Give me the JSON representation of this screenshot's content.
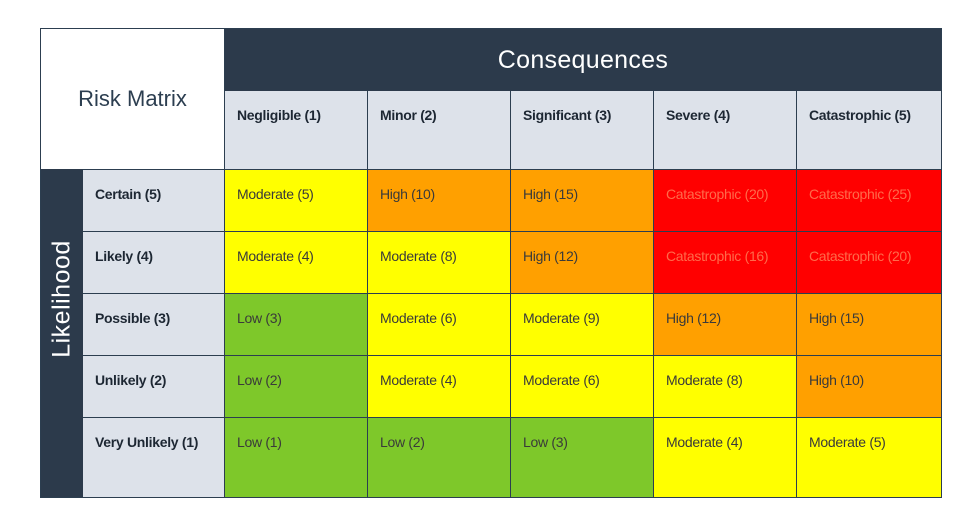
{
  "title": "Risk Matrix",
  "consequences_label": "Consequences",
  "likelihood_label": "Likelihood",
  "columns": [
    "Negligible (1)",
    "Minor (2)",
    "Significant (3)",
    "Severe (4)",
    "Catastrophic (5)"
  ],
  "rows": [
    {
      "label": "Certain (5)",
      "cells": [
        {
          "text": "Moderate (5)",
          "level": "moderate"
        },
        {
          "text": "High (10)",
          "level": "high"
        },
        {
          "text": "High (15)",
          "level": "high"
        },
        {
          "text": "Catastrophic (20)",
          "level": "catastrophic"
        },
        {
          "text": "Catastrophic (25)",
          "level": "catastrophic"
        }
      ]
    },
    {
      "label": "Likely (4)",
      "cells": [
        {
          "text": "Moderate (4)",
          "level": "moderate"
        },
        {
          "text": "Moderate (8)",
          "level": "moderate"
        },
        {
          "text": "High (12)",
          "level": "high"
        },
        {
          "text": "Catastrophic (16)",
          "level": "catastrophic"
        },
        {
          "text": "Catastrophic (20)",
          "level": "catastrophic"
        }
      ]
    },
    {
      "label": "Possible (3)",
      "cells": [
        {
          "text": "Low (3)",
          "level": "low"
        },
        {
          "text": "Moderate (6)",
          "level": "moderate"
        },
        {
          "text": "Moderate (9)",
          "level": "moderate"
        },
        {
          "text": "High (12)",
          "level": "high"
        },
        {
          "text": "High (15)",
          "level": "high"
        }
      ]
    },
    {
      "label": "Unlikely (2)",
      "cells": [
        {
          "text": "Low (2)",
          "level": "low"
        },
        {
          "text": "Moderate (4)",
          "level": "moderate"
        },
        {
          "text": "Moderate (6)",
          "level": "moderate"
        },
        {
          "text": "Moderate (8)",
          "level": "moderate"
        },
        {
          "text": "High (10)",
          "level": "high"
        }
      ]
    },
    {
      "label": "Very Unlikely (1)",
      "cells": [
        {
          "text": "Low (1)",
          "level": "low"
        },
        {
          "text": "Low (2)",
          "level": "low"
        },
        {
          "text": "Low (3)",
          "level": "low"
        },
        {
          "text": "Moderate (4)",
          "level": "moderate"
        },
        {
          "text": "Moderate (5)",
          "level": "moderate"
        }
      ]
    }
  ],
  "colors": {
    "header_dark": "#2c3a4b",
    "header_light": "#dde2ea",
    "low": "#7ec82a",
    "moderate": "#ffff00",
    "high": "#ffa000",
    "catastrophic": "#ff0000",
    "catastrophic_text": "#ff6a4a",
    "cell_text": "#3a3a3a"
  }
}
